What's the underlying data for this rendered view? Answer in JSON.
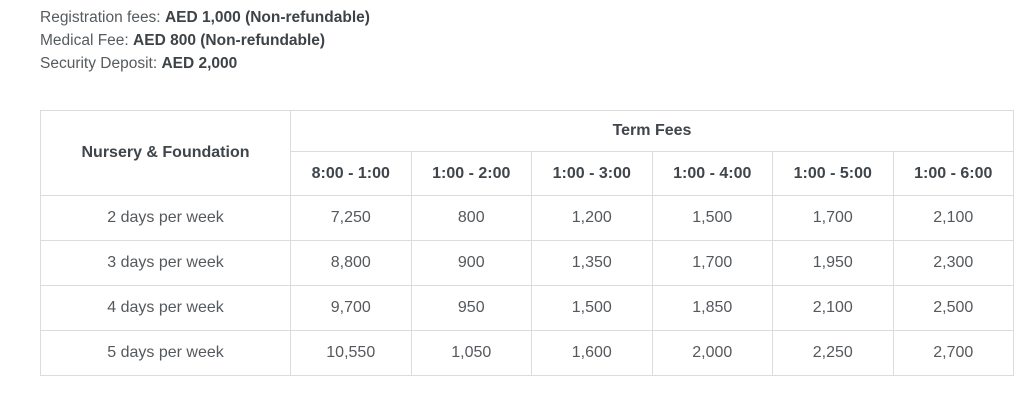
{
  "notes": {
    "lines": [
      {
        "label": "Registration fees: ",
        "value": "AED 1,000 (Non-refundable)"
      },
      {
        "label": "Medical Fee: ",
        "value": "AED 800 (Non-refundable)"
      },
      {
        "label": "Security Deposit: ",
        "value": "AED 2,000"
      }
    ]
  },
  "table": {
    "row_header_title": "Nursery & Foundation",
    "group_header": "Term Fees",
    "columns": [
      "8:00 - 1:00",
      "1:00 - 2:00",
      "1:00 - 3:00",
      "1:00 - 4:00",
      "1:00 - 5:00",
      "1:00 - 6:00"
    ],
    "rows": [
      {
        "label": "2 days per week",
        "values": [
          "7,250",
          "800",
          "1,200",
          "1,500",
          "1,700",
          "2,100"
        ]
      },
      {
        "label": "3 days per week",
        "values": [
          "8,800",
          "900",
          "1,350",
          "1,700",
          "1,950",
          "2,300"
        ]
      },
      {
        "label": "4 days per week",
        "values": [
          "9,700",
          "950",
          "1,500",
          "1,850",
          "2,100",
          "2,500"
        ]
      },
      {
        "label": "5 days per week",
        "values": [
          "10,550",
          "1,050",
          "1,600",
          "2,000",
          "2,250",
          "2,700"
        ]
      }
    ]
  },
  "colors": {
    "background": "#ffffff",
    "heading_text": "#3f454a",
    "body_text": "#55595d",
    "note_label_text": "#565b5f",
    "note_value_text": "#3e4347",
    "table_border": "#dcdcdc"
  }
}
